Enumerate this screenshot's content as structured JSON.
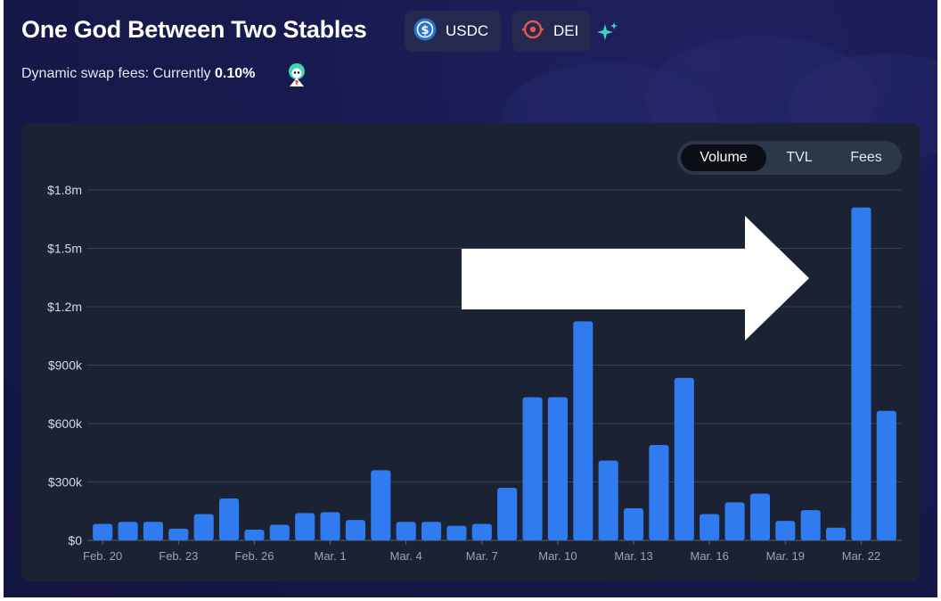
{
  "header": {
    "title": "One God Between Two Stables",
    "tokens": [
      {
        "symbol": "USDC",
        "icon": "usdc-icon",
        "color": "#2775ca"
      },
      {
        "symbol": "DEI",
        "icon": "dei-icon",
        "color": "#e8574e"
      }
    ],
    "fee_prefix": "Dynamic swap fees: Currently ",
    "fee_value": "0.10%"
  },
  "toggle": {
    "options": [
      "Volume",
      "TVL",
      "Fees"
    ],
    "active": "Volume"
  },
  "colors": {
    "background": "#171a4e",
    "card": "#1a2233",
    "bar": "#2f7bef",
    "grid": "#34425a",
    "tick_text": "#9aa4b6",
    "y_text": "#d6dbe6"
  },
  "chart_data": {
    "type": "bar",
    "series": [
      {
        "values": [
          85000,
          95000,
          95000,
          60000,
          135000,
          215000,
          55000,
          80000,
          140000,
          145000,
          105000,
          360000,
          95000,
          95000,
          75000,
          85000,
          270000,
          735000,
          735000,
          1125000,
          410000,
          165000,
          490000,
          835000,
          135000,
          195000,
          240000,
          100000,
          155000,
          65000,
          1710000,
          665000
        ]
      }
    ],
    "x_tick_labels": [
      "Feb. 20",
      "Feb. 23",
      "Feb. 26",
      "Mar. 1",
      "Mar. 4",
      "Mar. 7",
      "Mar. 10",
      "Mar. 13",
      "Mar. 16",
      "Mar. 19",
      "Mar. 22"
    ],
    "x_tick_every": 3,
    "y_ticks": [
      0,
      300000,
      600000,
      900000,
      1200000,
      1500000,
      1800000
    ],
    "y_tick_labels": [
      "$0",
      "$300k",
      "$600k",
      "$900k",
      "$1.2m",
      "$1.5m",
      "$1.8m"
    ],
    "ylim": [
      0,
      1800000
    ],
    "grid": true,
    "annotation": "white-arrow-pointing-right"
  }
}
